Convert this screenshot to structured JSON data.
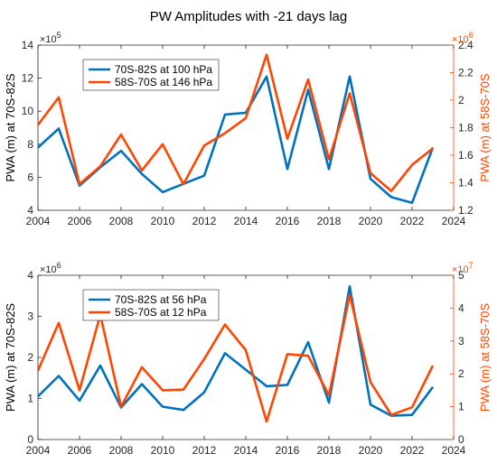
{
  "figure_title": "PW Amplitudes with -21 days lag",
  "colors": {
    "blue": "#0072BD",
    "orange": "#FF4500",
    "axis": "#262626"
  },
  "chart_data": [
    {
      "type": "line",
      "x": [
        2004,
        2005,
        2006,
        2007,
        2008,
        2009,
        2010,
        2011,
        2012,
        2013,
        2014,
        2015,
        2016,
        2017,
        2018,
        2019,
        2020,
        2021,
        2022,
        2023
      ],
      "xlim": [
        2004,
        2024
      ],
      "xticks": [
        "2004",
        "2006",
        "2008",
        "2010",
        "2012",
        "2014",
        "2016",
        "2018",
        "2020",
        "2022",
        "2024"
      ],
      "left_axis": {
        "label": "PWA (m) at 70S-82S",
        "ylim": [
          4,
          14
        ],
        "ticks": [
          "4",
          "6",
          "8",
          "10",
          "12",
          "14"
        ],
        "multiplier": "×10",
        "exponent": "5"
      },
      "right_axis": {
        "label": "PWA (m) at 58S-70S",
        "ylim": [
          1.2,
          2.4
        ],
        "ticks": [
          "1.2",
          "1.4",
          "1.6",
          "1.8",
          "2",
          "2.2",
          "2.4"
        ],
        "multiplier": "×10",
        "exponent": "6"
      },
      "series": [
        {
          "name": "70S-82S at 100 hPa",
          "axis": "left",
          "color": "#0072BD",
          "values": [
            7.8,
            8.95,
            5.5,
            6.6,
            7.6,
            6.2,
            5.1,
            5.6,
            6.1,
            9.8,
            9.9,
            12.1,
            6.5,
            11.3,
            6.5,
            12.1,
            5.9,
            4.8,
            4.45,
            7.8
          ]
        },
        {
          "name": "58S-70S at 146 hPa",
          "axis": "right",
          "color": "#FF4500",
          "values": [
            1.82,
            2.02,
            1.39,
            1.52,
            1.75,
            1.49,
            1.68,
            1.39,
            1.67,
            1.76,
            1.87,
            2.33,
            1.72,
            2.15,
            1.57,
            2.05,
            1.47,
            1.34,
            1.53,
            1.65
          ]
        }
      ],
      "legend": "top-left"
    },
    {
      "type": "line",
      "x": [
        2004,
        2005,
        2006,
        2007,
        2008,
        2009,
        2010,
        2011,
        2012,
        2013,
        2014,
        2015,
        2016,
        2017,
        2018,
        2019,
        2020,
        2021,
        2022,
        2023
      ],
      "xlim": [
        2004,
        2024
      ],
      "xticks": [
        "2004",
        "2006",
        "2008",
        "2010",
        "2012",
        "2014",
        "2016",
        "2018",
        "2020",
        "2022",
        "2024"
      ],
      "left_axis": {
        "label": "PWA (m) at 70S-82S",
        "ylim": [
          0,
          4
        ],
        "ticks": [
          "0",
          "1",
          "2",
          "3",
          "4"
        ],
        "multiplier": "×10",
        "exponent": "6"
      },
      "right_axis": {
        "label": "PWA (m) at 58S-70S",
        "ylim": [
          0,
          5
        ],
        "ticks": [
          "0",
          "1",
          "2",
          "3",
          "4",
          "5"
        ],
        "multiplier": "×10",
        "exponent": "7"
      },
      "series": [
        {
          "name": "70S-82S at 56 hPa",
          "axis": "left",
          "color": "#0072BD",
          "values": [
            1.05,
            1.55,
            0.95,
            1.8,
            0.78,
            1.35,
            0.8,
            0.72,
            1.15,
            2.1,
            1.7,
            1.3,
            1.33,
            2.37,
            0.9,
            3.73,
            0.85,
            0.58,
            0.6,
            1.28
          ]
        },
        {
          "name": "58S-70S at 12 hPa",
          "axis": "right",
          "color": "#FF4500",
          "values": [
            2.1,
            3.55,
            1.5,
            3.8,
            1.0,
            2.2,
            1.5,
            1.52,
            2.45,
            3.5,
            2.72,
            0.55,
            2.6,
            2.55,
            1.35,
            4.4,
            1.75,
            0.75,
            0.98,
            2.25
          ]
        }
      ],
      "legend": "top-left"
    }
  ]
}
